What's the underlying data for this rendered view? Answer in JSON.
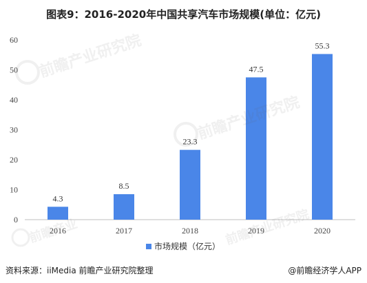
{
  "title": "图表9：2016-2020年中国共享汽车市场规模(单位：亿元)",
  "source": "资料来源：iiMedia 前瞻产业研究院整理",
  "credit": "@前瞻经济学人APP",
  "colors": {
    "bar": "#4a86e8",
    "axis": "#bfbfbf"
  },
  "chart_data": {
    "type": "bar",
    "title": "图表9：2016-2020年中国共享汽车市场规模(单位：亿元)",
    "categories": [
      "2016",
      "2017",
      "2018",
      "2019",
      "2020"
    ],
    "series": [
      {
        "name": "市场规模（亿元）",
        "values": [
          4.3,
          8.5,
          23.3,
          47.5,
          55.3
        ]
      }
    ],
    "yticks": [
      "0",
      "10",
      "20",
      "30",
      "40",
      "50",
      "60"
    ],
    "ylim": [
      0,
      60
    ],
    "grid": false,
    "legend": "bottom-center",
    "data_labels": [
      "4.3",
      "8.5",
      "23.3",
      "47.5",
      "55.3"
    ]
  }
}
